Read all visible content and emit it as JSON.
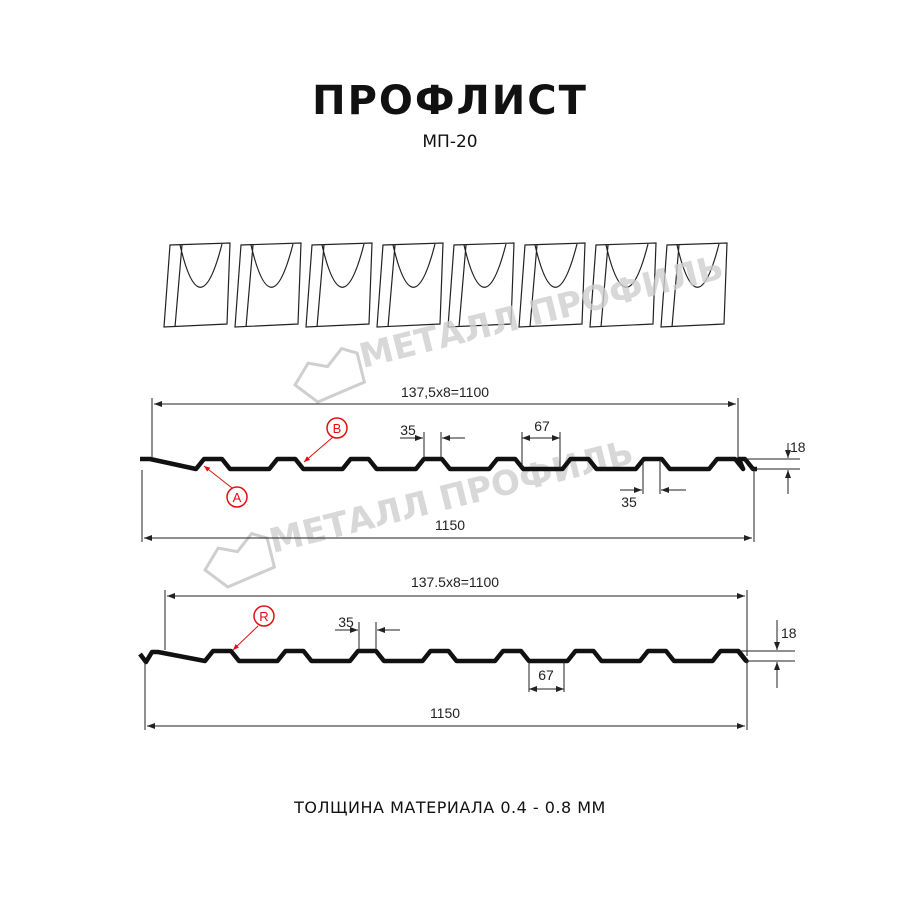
{
  "title": "ПРОФЛИСТ",
  "subtitle": "МП-20",
  "watermark": "МЕТАЛЛ ПРОФИЛЬ",
  "profile_1": {
    "overall_width_label": "1150",
    "useful_width_label": "137,5x8=1100",
    "crest_width_label": "35",
    "crest_width_label_2": "35",
    "valley_width_label": "67",
    "height_label": "18",
    "markers": [
      "A",
      "B"
    ]
  },
  "profile_2": {
    "overall_width_label": "1150",
    "useful_width_label": "137.5x8=1100",
    "crest_width_label": "35",
    "valley_width_label": "67",
    "height_label": "18",
    "markers": [
      "R"
    ]
  },
  "footer": "ТОЛЩИНА МАТЕРИАЛА 0.4 - 0.8 ММ",
  "colors": {
    "profile": "#111111",
    "marker": "#e01010",
    "watermark": "#cfcfcf"
  }
}
